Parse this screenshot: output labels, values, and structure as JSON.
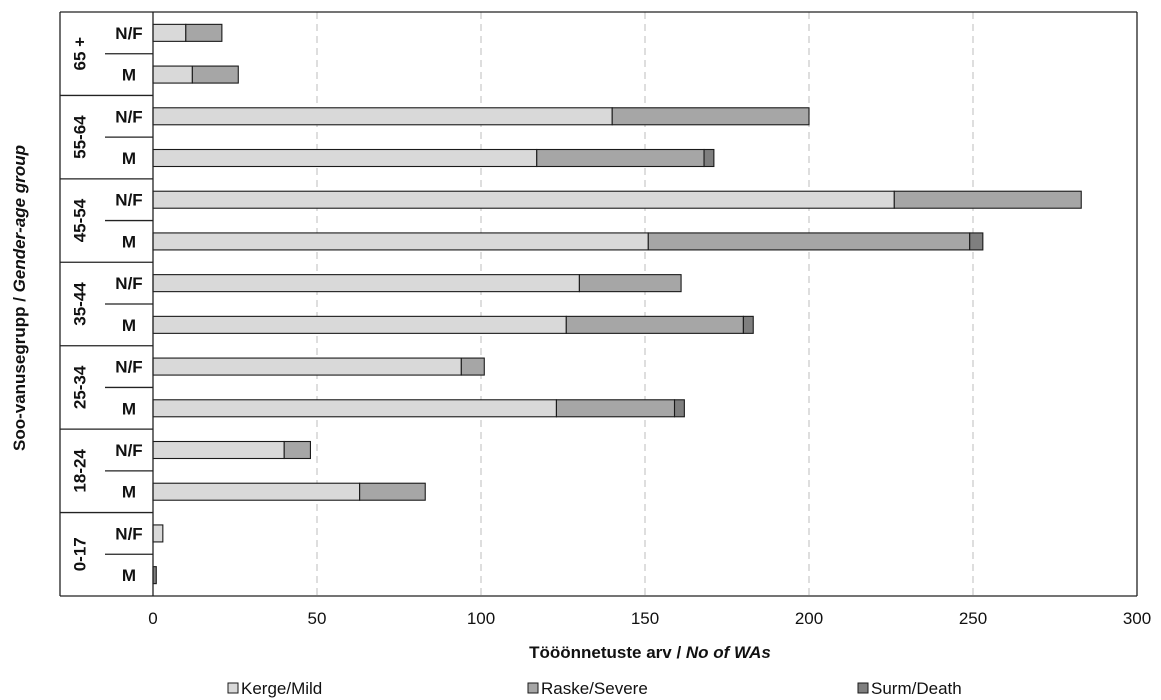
{
  "chart_data": {
    "type": "bar",
    "orientation": "horizontal",
    "stacked": true,
    "xlabel_parts": [
      "Tööönnetuste arv / ",
      "No of WAs"
    ],
    "ylabel_parts": [
      "Soo-vanusegrupp / ",
      "Gender-age group"
    ],
    "xlim": [
      0,
      300
    ],
    "xticks": [
      "0",
      "50",
      "100",
      "150",
      "200",
      "250",
      "300"
    ],
    "grid": "vertical-dashed",
    "legend_position": "bottom",
    "groups": [
      "65 +",
      "55-64",
      "45-54",
      "35-44",
      "25-34",
      "18-24",
      "0-17"
    ],
    "genders": [
      "N/F",
      "M"
    ],
    "series": [
      {
        "name": "Kerge/Mild",
        "color": "#d9d9d9",
        "values": [
          10,
          12,
          140,
          117,
          226,
          151,
          130,
          126,
          94,
          123,
          40,
          63,
          3,
          0
        ]
      },
      {
        "name": "Raske/Severe",
        "color": "#a6a6a6",
        "values": [
          11,
          14,
          60,
          51,
          57,
          98,
          31,
          54,
          7,
          36,
          8,
          20,
          0,
          0
        ]
      },
      {
        "name": "Surm/Death",
        "color": "#7f7f7f",
        "values": [
          0,
          0,
          0,
          3,
          0,
          4,
          0,
          3,
          0,
          3,
          0,
          0,
          0,
          1
        ]
      }
    ]
  }
}
